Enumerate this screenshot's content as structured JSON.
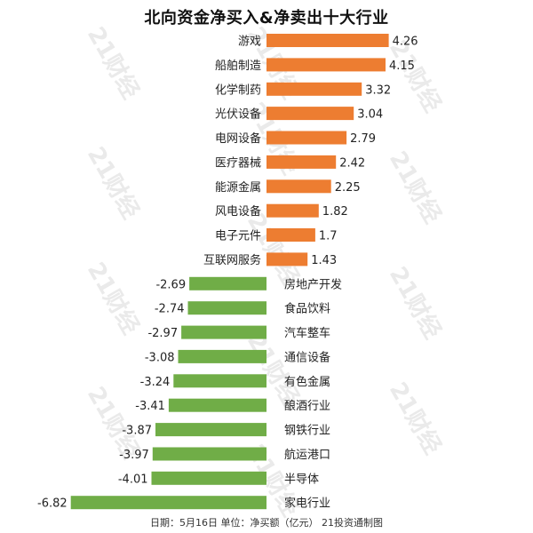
{
  "colors": {
    "positive": "#ED7D31",
    "negative": "#70AD47",
    "watermark": "#d9d9d9",
    "text": "#222222"
  },
  "watermark_text": "21财经",
  "chart_data": {
    "type": "bar",
    "orientation": "horizontal",
    "title": "北向资金净买入&净卖出十大行业",
    "footer": "日期：5月16日 单位：净买额（亿元） 21投资通制图",
    "xlabel": "",
    "ylabel": "",
    "xlim": [
      -7,
      4.5
    ],
    "grid": false,
    "legend": "none",
    "categories": [
      "游戏",
      "船舶制造",
      "化学制药",
      "光伏设备",
      "电网设备",
      "医疗器械",
      "能源金属",
      "风电设备",
      "电子元件",
      "互联网服务",
      "房地产开发",
      "食品饮料",
      "汽车整车",
      "通信设备",
      "有色金属",
      "酿酒行业",
      "钢铁行业",
      "航运港口",
      "半导体",
      "家电行业"
    ],
    "values": [
      4.26,
      4.15,
      3.32,
      3.04,
      2.79,
      2.42,
      2.25,
      1.82,
      1.7,
      1.43,
      -2.69,
      -2.74,
      -2.97,
      -3.08,
      -3.24,
      -3.41,
      -3.87,
      -3.97,
      -4.01,
      -6.82
    ],
    "value_labels": [
      "4.26",
      "4.15",
      "3.32",
      "3.04",
      "2.79",
      "2.42",
      "2.25",
      "1.82",
      "1.7",
      "1.43",
      "-2.69",
      "-2.74",
      "-2.97",
      "-3.08",
      "-3.24",
      "-3.41",
      "-3.87",
      "-3.97",
      "-4.01",
      "-6.82"
    ]
  }
}
